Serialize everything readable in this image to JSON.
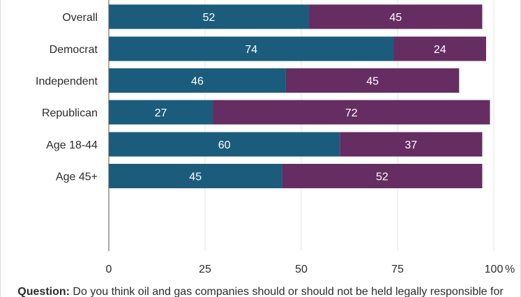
{
  "chart_data": {
    "type": "bar",
    "orientation": "horizontal",
    "stacked": true,
    "categories": [
      "Overall",
      "Democrat",
      "Independent",
      "Republican",
      "Age 18-44",
      "Age 45+"
    ],
    "groups": [
      [
        "Overall"
      ],
      [
        "Democrat",
        "Independent",
        "Republican"
      ],
      [
        "Age 18-44",
        "Age 45+"
      ]
    ],
    "series": [
      {
        "values": [
          52,
          74,
          46,
          27,
          60,
          45
        ],
        "color": "#1b5c7d"
      },
      {
        "values": [
          45,
          24,
          45,
          72,
          37,
          52
        ],
        "color": "#652d62"
      }
    ],
    "xlim": [
      0,
      100
    ],
    "x_ticks": [
      0,
      25,
      50,
      75,
      100
    ],
    "x_tick_labels": [
      "0",
      "25",
      "50",
      "75",
      "100"
    ],
    "x_unit_suffix": "%",
    "grid": true
  },
  "footnote": {
    "label": "Question:",
    "text": "Do you think oil and gas companies should or should not be held legally responsible for"
  }
}
